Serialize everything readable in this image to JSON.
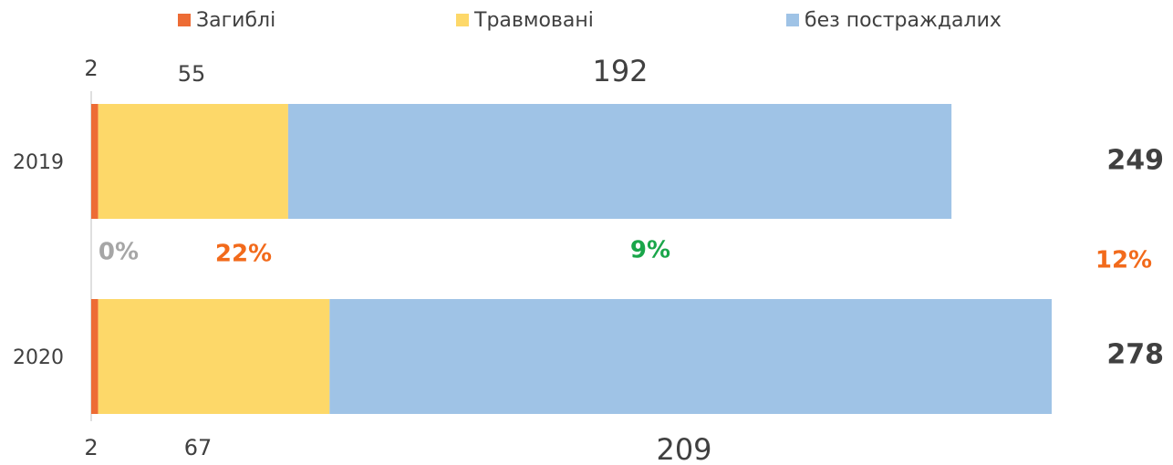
{
  "chart_data": {
    "type": "stacked_bar_horizontal",
    "categories": [
      "2019",
      "2020"
    ],
    "series": [
      {
        "name": "Загиблі",
        "color": "#ed6c35",
        "values": [
          2,
          2
        ]
      },
      {
        "name": "Травмовані",
        "color": "#fdd869",
        "values": [
          55,
          67
        ]
      },
      {
        "name": "без постраждалих",
        "color": "#9fc3e6",
        "values": [
          192,
          209
        ]
      }
    ],
    "totals": [
      249,
      278
    ],
    "changes": [
      {
        "label": "0%",
        "color": "#a6a6a6"
      },
      {
        "label": "22%",
        "color": "#f26a1b"
      },
      {
        "label": "9%",
        "color": "#1aa64a"
      },
      {
        "label": "12%",
        "color": "#f26a1b"
      }
    ]
  }
}
